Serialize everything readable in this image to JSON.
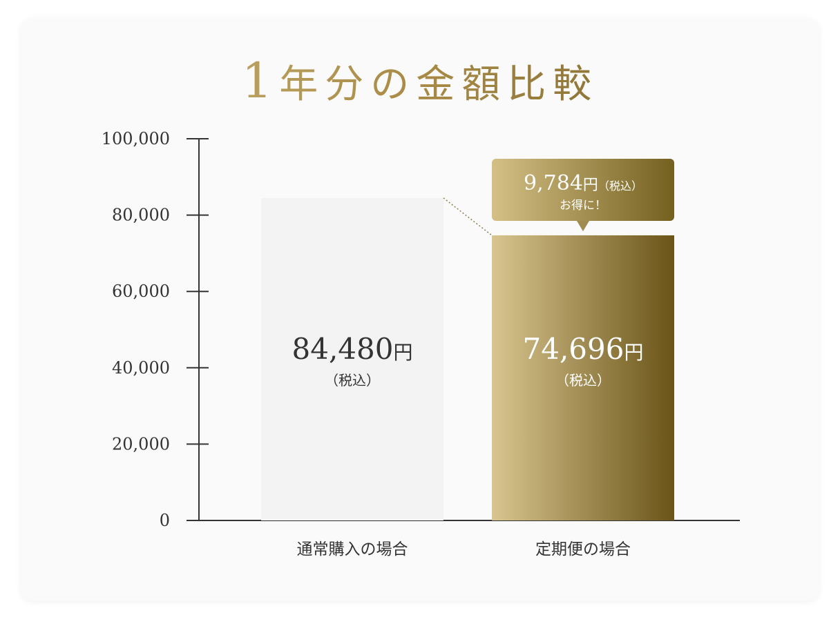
{
  "title_num": "1",
  "title_rest": "年分の金額比較",
  "colors": {
    "gold_light": "#d8c58f",
    "gold_dark": "#6a5418",
    "gray_bar": "#f3f3f3",
    "text": "#333333"
  },
  "chart_data": {
    "type": "bar",
    "title": "1年分の金額比較",
    "categories": [
      "通常購入の場合",
      "定期便の場合"
    ],
    "values": [
      84480,
      74696
    ],
    "ylim": [
      0,
      100000
    ],
    "yticks": [
      {
        "value": 0,
        "label": "0"
      },
      {
        "value": 20000,
        "label": "20,000"
      },
      {
        "value": 40000,
        "label": "40,000"
      },
      {
        "value": 60000,
        "label": "60,000"
      },
      {
        "value": 80000,
        "label": "80,000"
      },
      {
        "value": 100000,
        "label": "100,000"
      }
    ],
    "bar_labels": [
      {
        "amount": "84,480",
        "unit": "円",
        "tax": "（税込）"
      },
      {
        "amount": "74,696",
        "unit": "円",
        "tax": "（税込）"
      }
    ],
    "callout": {
      "amount": "9,784",
      "unit": "円",
      "tax": "（税込）",
      "line2": "お得に！"
    },
    "grid": false,
    "legend": "none"
  }
}
